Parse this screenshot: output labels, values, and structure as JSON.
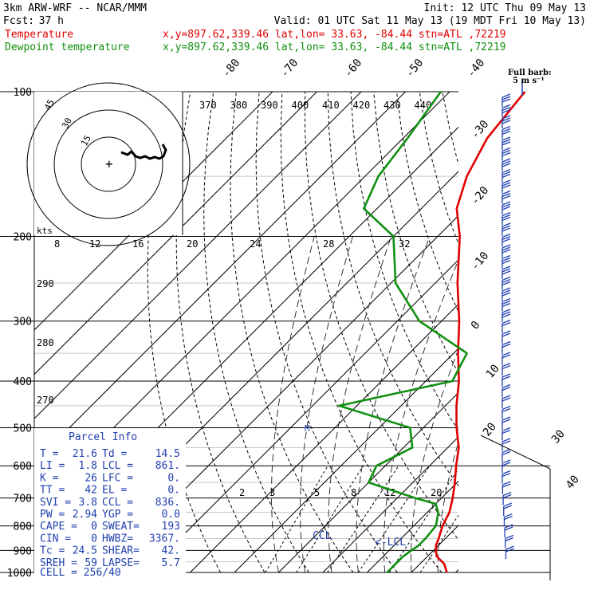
{
  "header": {
    "model": "3km ARW-WRF -- NCAR/MMM",
    "init": "Init: 12 UTC Thu 09 May 13",
    "fcst_label": "Fcst:",
    "fcst_value": "37 h",
    "valid": "Valid: 01 UTC Sat 11 May 13 (19 MDT Fri 10 May 13)",
    "temp_label": "Temperature",
    "dew_label": "Dewpoint temperature",
    "loc_info": "x,y=897.62,339.46   lat,lon= 33.63, -84.44  stn=ATL ,72219"
  },
  "colors": {
    "temperature": "#e00000",
    "dewpoint": "#109010",
    "parcel_info": "#1f3fb0",
    "wind": "#1f3fb0"
  },
  "chart_data": {
    "type": "line",
    "title": "",
    "pressure_levels": [
      "100",
      "200",
      "300",
      "400",
      "500",
      "600",
      "700",
      "800",
      "900",
      "1000"
    ],
    "isotherm_labels": [
      "-80",
      "-70",
      "-60",
      "-50",
      "-40",
      "-30",
      "-20",
      "-10",
      "0",
      "10",
      "20",
      "30",
      "40"
    ],
    "theta_labels": [
      "370",
      "380",
      "390",
      "400",
      "410",
      "420",
      "430",
      "440"
    ],
    "mixing_ratio_labels": [
      "2",
      "3",
      "5",
      "8",
      "12",
      "20"
    ],
    "dry_adiabat_labels": [
      "290",
      "280",
      "270"
    ],
    "hodo_speed_labels": [
      "8",
      "12",
      "16",
      "20",
      "24",
      "28",
      "32"
    ],
    "hodo_units": "kts",
    "hodo_rings": [
      "15",
      "30",
      "45"
    ],
    "series": [
      {
        "name": "Temperature",
        "points": [
          [
            1000,
            28
          ],
          [
            960,
            25.5
          ],
          [
            925,
            22
          ],
          [
            880,
            19.5
          ],
          [
            850,
            18.5
          ],
          [
            800,
            16.5
          ],
          [
            750,
            15
          ],
          [
            700,
            12.5
          ],
          [
            650,
            9.5
          ],
          [
            600,
            6
          ],
          [
            550,
            2.5
          ],
          [
            500,
            -2.5
          ],
          [
            450,
            -7.5
          ],
          [
            400,
            -12.5
          ],
          [
            350,
            -19
          ],
          [
            300,
            -26
          ],
          [
            250,
            -35
          ],
          [
            200,
            -45
          ],
          [
            175,
            -52
          ],
          [
            150,
            -57
          ],
          [
            125,
            -61
          ],
          [
            100,
            -63
          ]
        ]
      },
      {
        "name": "Dewpoint temperature",
        "points": [
          [
            1000,
            14.5
          ],
          [
            960,
            14.5
          ],
          [
            925,
            14.5
          ],
          [
            880,
            15.5
          ],
          [
            850,
            15.5
          ],
          [
            800,
            15
          ],
          [
            750,
            12.5
          ],
          [
            720,
            10
          ],
          [
            700,
            4
          ],
          [
            650,
            -10
          ],
          [
            600,
            -12
          ],
          [
            550,
            -8
          ],
          [
            500,
            -13
          ],
          [
            450,
            -34
          ],
          [
            400,
            -14
          ],
          [
            350,
            -17
          ],
          [
            300,
            -35
          ],
          [
            250,
            -49
          ],
          [
            200,
            -60
          ],
          [
            175,
            -73
          ],
          [
            150,
            -77
          ],
          [
            125,
            -79
          ],
          [
            100,
            -82
          ]
        ]
      }
    ],
    "annotations": [
      "CCL",
      "<-LCL",
      "M"
    ],
    "wind_key": {
      "title": "Full barb:",
      "value": "5 m s⁻¹"
    }
  },
  "parcel": {
    "title": "Parcel Info",
    "rows": [
      [
        "T  =",
        "21.6",
        "Td =",
        "14.5"
      ],
      [
        "LI =",
        "1.8",
        "LCL =",
        "861."
      ],
      [
        "K  =",
        "26",
        "LFC =",
        "0."
      ],
      [
        "TT =",
        "42",
        "EL =",
        "0."
      ],
      [
        "SVI =",
        "3.8",
        "CCL =",
        "836."
      ],
      [
        "PW =",
        "2.94",
        "YGP =",
        "0.0"
      ],
      [
        "CAPE =",
        "0",
        "SWEAT=",
        "193"
      ],
      [
        "CIN =",
        "0",
        "HWBZ=",
        "3367."
      ],
      [
        "Tc =",
        "24.5",
        "SHEAR=",
        "42."
      ],
      [
        "SREH =",
        "59",
        "LAPSE=",
        "5.7"
      ]
    ],
    "cell": "CELL = 256/40"
  }
}
